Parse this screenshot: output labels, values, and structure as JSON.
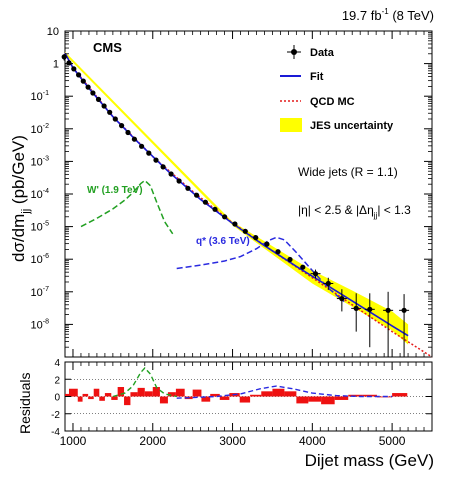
{
  "chart_data": {
    "type": "scatter",
    "header": {
      "lumi_value": "19.7 fb",
      "lumi_exp": "-1",
      "lumi_energy": "(8 TeV)"
    },
    "experiment_label": "CMS",
    "ylabel": {
      "main": "dσ/dm",
      "sub": "jj",
      "units": "(pb/GeV)"
    },
    "xlabel": "Dijet mass (GeV)",
    "residuals_label": "Residuals",
    "x_range": [
      900,
      5500
    ],
    "y_range_log": [
      -9,
      1
    ],
    "y_scale": "log",
    "x_ticks": [
      1000,
      2000,
      3000,
      4000,
      5000
    ],
    "x_tick_labels": [
      "1000",
      "2000",
      "3000",
      "4000",
      "5000"
    ],
    "y_ticks": [
      {
        "exp": 1,
        "label": "10"
      },
      {
        "exp": 0,
        "label": "1"
      },
      {
        "exp": -1,
        "label": "10",
        "sup": "-1"
      },
      {
        "exp": -2,
        "label": "10",
        "sup": "-2"
      },
      {
        "exp": -3,
        "label": "10",
        "sup": "-3"
      },
      {
        "exp": -4,
        "label": "10",
        "sup": "-4"
      },
      {
        "exp": -5,
        "label": "10",
        "sup": "-5"
      },
      {
        "exp": -6,
        "label": "10",
        "sup": "-6"
      },
      {
        "exp": -7,
        "label": "10",
        "sup": "-7"
      },
      {
        "exp": -8,
        "label": "10",
        "sup": "-8"
      }
    ],
    "residual_range": [
      -4,
      4
    ],
    "residual_ticks": [
      4,
      2,
      0,
      -2,
      -4
    ],
    "residual_tick_labels": [
      "4",
      "2",
      "0",
      "-2",
      "-4"
    ],
    "legend": {
      "position": "top-right",
      "data": "Data",
      "fit": "Fit",
      "qcd": "QCD MC",
      "jes": "JES uncertainty"
    },
    "annotations": {
      "jets": "Wide jets (R = 1.1)",
      "cuts_a": "|η| < 2.5 & |Δη",
      "cuts_sub": "jj",
      "cuts_b": "| < 1.3"
    },
    "signal_labels": {
      "wprime": "W' (1.9 TeV)",
      "qstar": "q* (3.6 TeV)"
    },
    "colors": {
      "fit": "#1a1ad6",
      "qcd": "#e41a1a",
      "jes": "#ffff00",
      "wprime": "#22a022",
      "qstar": "#2a2ae0",
      "residual_bar": "#ee1111"
    },
    "data_points": [
      {
        "x": 890,
        "y": 1.6,
        "err": 0.12
      },
      {
        "x": 950,
        "y": 1.05
      },
      {
        "x": 1010,
        "y": 0.69
      },
      {
        "x": 1070,
        "y": 0.45
      },
      {
        "x": 1130,
        "y": 0.29
      },
      {
        "x": 1190,
        "y": 0.19
      },
      {
        "x": 1250,
        "y": 0.125
      },
      {
        "x": 1320,
        "y": 0.08
      },
      {
        "x": 1390,
        "y": 0.05
      },
      {
        "x": 1460,
        "y": 0.032
      },
      {
        "x": 1530,
        "y": 0.02
      },
      {
        "x": 1610,
        "y": 0.0125
      },
      {
        "x": 1690,
        "y": 0.0077
      },
      {
        "x": 1770,
        "y": 0.0048
      },
      {
        "x": 1860,
        "y": 0.0029
      },
      {
        "x": 1950,
        "y": 0.0018
      },
      {
        "x": 2040,
        "y": 0.0011
      },
      {
        "x": 2130,
        "y": 0.00068
      },
      {
        "x": 2230,
        "y": 0.00041
      },
      {
        "x": 2330,
        "y": 0.00025
      },
      {
        "x": 2440,
        "y": 0.00015
      },
      {
        "x": 2550,
        "y": 9.2e-05
      },
      {
        "x": 2660,
        "y": 5.6e-05
      },
      {
        "x": 2780,
        "y": 3.4e-05
      },
      {
        "x": 2900,
        "y": 2e-05
      },
      {
        "x": 3030,
        "y": 1.2e-05
      },
      {
        "x": 3160,
        "y": 7.2e-06
      },
      {
        "x": 3290,
        "y": 4.6e-06
      },
      {
        "x": 3430,
        "y": 2.9e-06
      },
      {
        "x": 3570,
        "y": 1.7e-06
      },
      {
        "x": 3720,
        "y": 9.8e-07
      },
      {
        "x": 3880,
        "y": 5.7e-07
      },
      {
        "x": 4040,
        "y": 3.6e-07,
        "lo": 2.6e-07,
        "hi": 4.8e-07
      },
      {
        "x": 4200,
        "y": 1.8e-07,
        "lo": 1.15e-07,
        "hi": 2.7e-07
      },
      {
        "x": 4370,
        "y": 6.2e-08,
        "lo": 2.5e-08,
        "hi": 1.2e-07
      },
      {
        "x": 4550,
        "y": 3.1e-08,
        "lo": 6e-09,
        "hi": 9e-08
      },
      {
        "x": 4720,
        "y": 2.9e-08,
        "lo": 2e-09,
        "hi": 9e-08
      },
      {
        "x": 4950,
        "y": 2.7e-08,
        "lo": 1e-09,
        "hi": 1e-07
      },
      {
        "x": 5150,
        "y": 2.7e-08,
        "lo": 1e-09,
        "hi": 8.5e-08
      }
    ],
    "fit_curve": {
      "x": [
        850,
        1000,
        1200,
        1500,
        1800,
        2200,
        2600,
        3000,
        3400,
        3800,
        4200,
        4600,
        5000,
        5200
      ],
      "y": [
        2.1,
        0.74,
        0.175,
        0.0235,
        0.0042,
        0.00048,
        6.8e-05,
        1.25e-05,
        2.6e-06,
        6e-07,
        1.5e-07,
        3.7e-08,
        9e-09,
        4.5e-09
      ]
    },
    "qcd_curve": {
      "x": [
        850,
        1000,
        1500,
        2000,
        2500,
        3000,
        3500,
        4000,
        4500,
        5000,
        5500
      ],
      "y": [
        2.1,
        0.75,
        0.024,
        0.0014,
        0.00012,
        1.3e-05,
        1.8e-06,
        2.7e-07,
        4e-08,
        6e-09,
        9e-10
      ]
    },
    "jes_band": {
      "x": [
        850,
        3000,
        4000,
        4500,
        5000,
        5200
      ],
      "upper": [
        2.3,
        1.4e-05,
        4.5e-07,
        1.1e-07,
        2.5e-08,
        1e-08
      ],
      "lower": [
        1.9,
        1.1e-05,
        1.8e-07,
        3.5e-08,
        6.5e-09,
        2.4e-09
      ]
    },
    "wprime_curve": {
      "x": [
        1100,
        1300,
        1500,
        1650,
        1750,
        1850,
        1900,
        1970,
        2050,
        2150,
        2250
      ],
      "y": [
        1e-05,
        1.8e-05,
        3.5e-05,
        6.5e-05,
        0.00011,
        0.00021,
        0.00026,
        0.00018,
        5.5e-05,
        1.4e-05,
        6e-06
      ]
    },
    "qstar_curve": {
      "x": [
        2300,
        2600,
        2900,
        3100,
        3300,
        3450,
        3550,
        3650,
        3800,
        4000,
        4200,
        4400
      ],
      "y": [
        5.2e-07,
        6.6e-07,
        8.8e-07,
        1.2e-06,
        2.1e-06,
        3.7e-06,
        4.7e-06,
        3.9e-06,
        1.6e-06,
        4.5e-07,
        1.3e-07,
        5e-08
      ]
    },
    "residual_bins": [
      {
        "x0": 850,
        "x1": 950,
        "v": 0.3
      },
      {
        "x0": 950,
        "x1": 1060,
        "v": 0.9
      },
      {
        "x0": 1060,
        "x1": 1120,
        "v": -0.6
      },
      {
        "x0": 1120,
        "x1": 1190,
        "v": 0.3
      },
      {
        "x0": 1190,
        "x1": 1260,
        "v": -0.3
      },
      {
        "x0": 1260,
        "x1": 1330,
        "v": 0.9
      },
      {
        "x0": 1330,
        "x1": 1400,
        "v": -0.5
      },
      {
        "x0": 1400,
        "x1": 1480,
        "v": 0.4
      },
      {
        "x0": 1480,
        "x1": 1560,
        "v": -0.4
      },
      {
        "x0": 1560,
        "x1": 1640,
        "v": 1.1
      },
      {
        "x0": 1640,
        "x1": 1720,
        "v": -1.0
      },
      {
        "x0": 1720,
        "x1": 1810,
        "v": 0.5
      },
      {
        "x0": 1810,
        "x1": 1900,
        "v": 1.0
      },
      {
        "x0": 1900,
        "x1": 2000,
        "v": 0.6
      },
      {
        "x0": 2000,
        "x1": 2090,
        "v": 1.1
      },
      {
        "x0": 2090,
        "x1": 2190,
        "v": -0.8
      },
      {
        "x0": 2190,
        "x1": 2290,
        "v": 0.5
      },
      {
        "x0": 2290,
        "x1": 2400,
        "v": 0.9
      },
      {
        "x0": 2400,
        "x1": 2500,
        "v": -0.3
      },
      {
        "x0": 2500,
        "x1": 2610,
        "v": 0.8
      },
      {
        "x0": 2610,
        "x1": 2720,
        "v": -0.6
      },
      {
        "x0": 2720,
        "x1": 2840,
        "v": 0.3
      },
      {
        "x0": 2840,
        "x1": 2960,
        "v": -0.4
      },
      {
        "x0": 2960,
        "x1": 3090,
        "v": 0.4
      },
      {
        "x0": 3090,
        "x1": 3220,
        "v": -0.7
      },
      {
        "x0": 3220,
        "x1": 3360,
        "v": 0.2
      },
      {
        "x0": 3360,
        "x1": 3500,
        "v": 0.6
      },
      {
        "x0": 3500,
        "x1": 3650,
        "v": 0.9
      },
      {
        "x0": 3650,
        "x1": 3800,
        "v": 0.6
      },
      {
        "x0": 3800,
        "x1": 3950,
        "v": -0.8
      },
      {
        "x0": 3950,
        "x1": 4110,
        "v": -0.6
      },
      {
        "x0": 4110,
        "x1": 4280,
        "v": -0.9
      },
      {
        "x0": 4280,
        "x1": 4450,
        "v": -0.4
      },
      {
        "x0": 4450,
        "x1": 4630,
        "v": 0.2
      },
      {
        "x0": 4630,
        "x1": 4810,
        "v": 0.2
      },
      {
        "x0": 4810,
        "x1": 5000,
        "v": -0.1
      },
      {
        "x0": 5000,
        "x1": 5190,
        "v": 0.4
      }
    ],
    "residual_wprime": {
      "x": [
        1500,
        1650,
        1750,
        1850,
        1900,
        1970,
        2050,
        2150,
        2300
      ],
      "y": [
        0.0,
        0.4,
        1.2,
        2.8,
        3.3,
        2.6,
        1.0,
        0.3,
        0.0
      ]
    },
    "residual_qstar": {
      "x": [
        2300,
        2800,
        3100,
        3350,
        3550,
        3750,
        4000,
        4300,
        4600,
        5000
      ],
      "y": [
        -0.2,
        0.0,
        0.3,
        0.9,
        1.2,
        0.9,
        0.4,
        0.1,
        0.0,
        0.0
      ]
    }
  }
}
